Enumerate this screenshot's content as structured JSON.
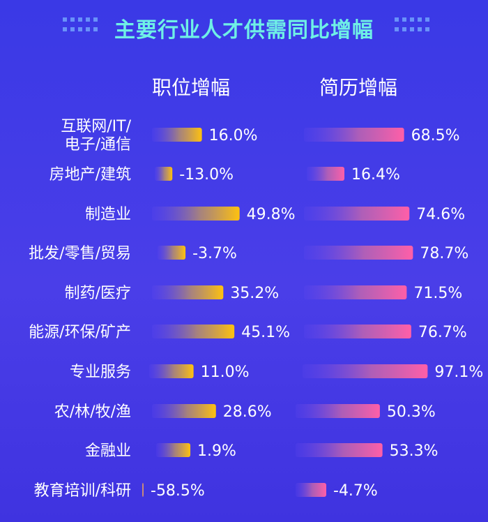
{
  "title": "主要行业人才供需同比增幅",
  "colors": {
    "background": "#3f3ae6",
    "title": "#6ff0e6",
    "job_bar_end": "#ffc20e",
    "resume_bar_end": "#ff5fa8"
  },
  "chart_data": {
    "type": "bar",
    "title": "主要行业人才供需同比增幅",
    "categories": [
      [
        "互联网/IT/",
        "电子/通信"
      ],
      [
        "房地产/建筑"
      ],
      [
        "制造业"
      ],
      [
        "批发/零售/贸易"
      ],
      [
        "制药/医疗"
      ],
      [
        "能源/环保/矿产"
      ],
      [
        "专业服务"
      ],
      [
        "农/林/牧/渔"
      ],
      [
        "金融业"
      ],
      [
        "教育培训/科研"
      ]
    ],
    "series": [
      {
        "name": "职位增幅",
        "values": [
          16.0,
          -13.0,
          49.8,
          -3.7,
          35.2,
          45.1,
          11.0,
          28.6,
          1.9,
          -58.5
        ],
        "labels": [
          "16.0%",
          "-13.0%",
          "49.8%",
          "-3.7%",
          "35.2%",
          "45.1%",
          "11.0%",
          "28.6%",
          "1.9%",
          "-58.5%"
        ]
      },
      {
        "name": "简历增幅",
        "values": [
          68.5,
          16.4,
          74.6,
          78.7,
          71.5,
          76.7,
          97.1,
          50.3,
          53.3,
          -4.7
        ],
        "labels": [
          "68.5%",
          "16.4%",
          "74.6%",
          "78.7%",
          "71.5%",
          "76.7%",
          "97.1%",
          "50.3%",
          "53.3%",
          "-4.7%"
        ]
      }
    ]
  }
}
